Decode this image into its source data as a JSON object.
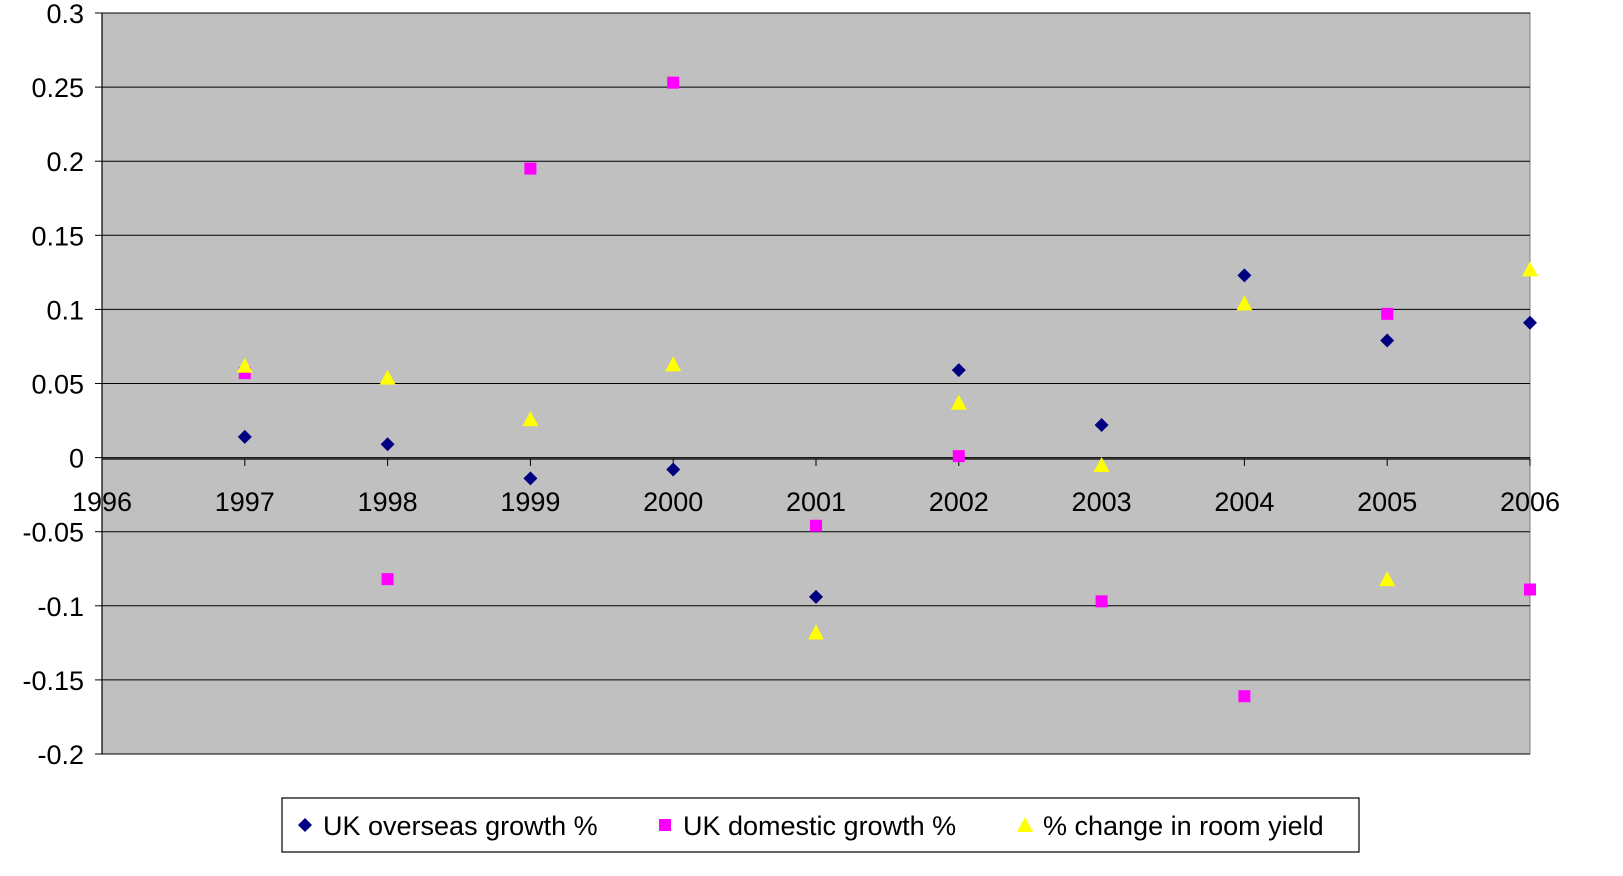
{
  "chart_data": {
    "type": "scatter",
    "title": "",
    "xlabel": "",
    "ylabel": "",
    "xlim": [
      1996,
      2006
    ],
    "ylim": [
      -0.2,
      0.3
    ],
    "x_ticks": [
      "1996",
      "1997",
      "1998",
      "1999",
      "2000",
      "2001",
      "2002",
      "2003",
      "2004",
      "2005",
      "2006"
    ],
    "y_ticks": [
      "0.3",
      "0.25",
      "0.2",
      "0.15",
      "0.1",
      "0.05",
      "0",
      "-0.05",
      "-0.1",
      "-0.15",
      "-0.2"
    ],
    "grid": "horizontal",
    "legend_position": "bottom",
    "plot_background": "#C0C0C0",
    "series": [
      {
        "name": "UK overseas growth %",
        "marker": "diamond",
        "color": "#000080",
        "x": [
          1997,
          1998,
          1999,
          2000,
          2001,
          2002,
          2003,
          2004,
          2005,
          2006
        ],
        "values": [
          0.014,
          0.009,
          -0.014,
          -0.008,
          -0.094,
          0.059,
          0.022,
          0.123,
          0.079,
          0.091
        ]
      },
      {
        "name": "UK domestic growth %",
        "marker": "square",
        "color": "#FF00FF",
        "x": [
          1997,
          1998,
          1999,
          2000,
          2001,
          2002,
          2003,
          2004,
          2005,
          2006
        ],
        "values": [
          0.057,
          -0.082,
          0.195,
          0.253,
          -0.046,
          0.001,
          -0.097,
          -0.161,
          0.097,
          -0.089
        ]
      },
      {
        "name": "% change in room yield",
        "marker": "triangle",
        "color": "#FFFF00",
        "x": [
          1997,
          1998,
          1999,
          2000,
          2001,
          2002,
          2003,
          2004,
          2005,
          2006
        ],
        "values": [
          0.062,
          0.054,
          0.026,
          0.063,
          -0.118,
          0.037,
          -0.005,
          0.104,
          -0.082,
          0.127
        ]
      }
    ]
  }
}
